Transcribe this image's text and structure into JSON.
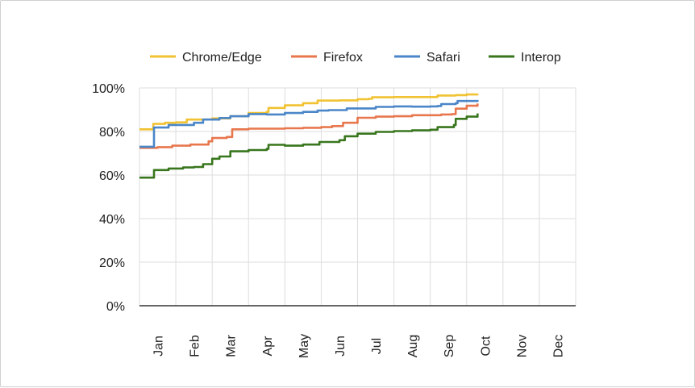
{
  "chart_data": {
    "type": "line",
    "title": "",
    "xlabel": "",
    "ylabel": "",
    "categories": [
      "Jan",
      "Feb",
      "Mar",
      "Apr",
      "May",
      "Jun",
      "Jul",
      "Aug",
      "Sep",
      "Oct",
      "Nov",
      "Dec"
    ],
    "y_ticks": [
      "0%",
      "20%",
      "40%",
      "60%",
      "80%",
      "100%"
    ],
    "ylim": [
      0,
      100
    ],
    "xlim": [
      0,
      12
    ],
    "legend_position": "top",
    "grid": true,
    "series": [
      {
        "name": "Chrome/Edge",
        "color": "#F1C232",
        "points": [
          [
            0.0,
            81.0
          ],
          [
            0.33,
            81.0
          ],
          [
            0.38,
            83.5
          ],
          [
            0.7,
            84.0
          ],
          [
            1.0,
            84.2
          ],
          [
            1.3,
            85.5
          ],
          [
            1.7,
            85.5
          ],
          [
            2.0,
            86.0
          ],
          [
            2.5,
            87.0
          ],
          [
            3.0,
            88.5
          ],
          [
            3.5,
            89.0
          ],
          [
            3.55,
            90.8
          ],
          [
            4.0,
            92.0
          ],
          [
            4.5,
            93.0
          ],
          [
            4.9,
            94.2
          ],
          [
            5.5,
            94.3
          ],
          [
            6.0,
            94.8
          ],
          [
            6.3,
            95.0
          ],
          [
            6.4,
            95.7
          ],
          [
            7.0,
            95.8
          ],
          [
            7.5,
            95.8
          ],
          [
            8.0,
            95.8
          ],
          [
            8.2,
            96.5
          ],
          [
            8.7,
            96.7
          ],
          [
            9.0,
            97.0
          ],
          [
            9.3,
            97.3
          ]
        ]
      },
      {
        "name": "Firefox",
        "color": "#E8774E",
        "points": [
          [
            0.0,
            72.5
          ],
          [
            0.5,
            72.8
          ],
          [
            0.9,
            73.5
          ],
          [
            1.4,
            74.0
          ],
          [
            1.9,
            75.5
          ],
          [
            2.0,
            77.0
          ],
          [
            2.4,
            77.5
          ],
          [
            2.55,
            81.0
          ],
          [
            3.0,
            81.3
          ],
          [
            4.0,
            81.5
          ],
          [
            4.5,
            81.7
          ],
          [
            5.0,
            82.0
          ],
          [
            5.3,
            82.5
          ],
          [
            5.6,
            84.0
          ],
          [
            6.0,
            86.3
          ],
          [
            6.5,
            86.8
          ],
          [
            7.0,
            87.0
          ],
          [
            7.5,
            87.5
          ],
          [
            8.3,
            87.8
          ],
          [
            8.6,
            88.0
          ],
          [
            8.7,
            90.5
          ],
          [
            9.0,
            91.8
          ],
          [
            9.3,
            92.8
          ]
        ]
      },
      {
        "name": "Safari",
        "color": "#4A86C8",
        "points": [
          [
            0.0,
            73.0
          ],
          [
            0.35,
            73.0
          ],
          [
            0.4,
            81.8
          ],
          [
            0.8,
            83.0
          ],
          [
            1.5,
            84.0
          ],
          [
            1.75,
            85.5
          ],
          [
            2.2,
            86.2
          ],
          [
            2.5,
            87.0
          ],
          [
            3.0,
            88.0
          ],
          [
            3.5,
            87.8
          ],
          [
            4.0,
            88.5
          ],
          [
            4.5,
            89.0
          ],
          [
            4.9,
            89.6
          ],
          [
            5.2,
            89.8
          ],
          [
            5.7,
            90.6
          ],
          [
            6.5,
            91.3
          ],
          [
            7.0,
            91.5
          ],
          [
            7.5,
            91.4
          ],
          [
            8.0,
            91.5
          ],
          [
            8.2,
            91.7
          ],
          [
            8.3,
            92.6
          ],
          [
            8.7,
            93.0
          ],
          [
            8.75,
            94.0
          ],
          [
            9.3,
            94.5
          ]
        ]
      },
      {
        "name": "Interop",
        "color": "#38761D",
        "points": [
          [
            0.0,
            58.8
          ],
          [
            0.37,
            58.8
          ],
          [
            0.4,
            62.3
          ],
          [
            0.8,
            63.0
          ],
          [
            1.2,
            63.5
          ],
          [
            1.5,
            63.7
          ],
          [
            1.75,
            65.0
          ],
          [
            2.0,
            67.5
          ],
          [
            2.2,
            68.5
          ],
          [
            2.5,
            70.9
          ],
          [
            3.0,
            71.5
          ],
          [
            3.5,
            72.0
          ],
          [
            3.55,
            73.9
          ],
          [
            4.0,
            73.5
          ],
          [
            4.5,
            74.0
          ],
          [
            4.95,
            75.2
          ],
          [
            5.5,
            76.0
          ],
          [
            5.65,
            77.8
          ],
          [
            6.0,
            79.0
          ],
          [
            6.5,
            79.8
          ],
          [
            7.0,
            80.2
          ],
          [
            7.5,
            80.5
          ],
          [
            8.0,
            80.8
          ],
          [
            8.2,
            82.0
          ],
          [
            8.65,
            83.0
          ],
          [
            8.7,
            85.8
          ],
          [
            9.0,
            86.8
          ],
          [
            9.3,
            88.3
          ]
        ]
      }
    ]
  }
}
